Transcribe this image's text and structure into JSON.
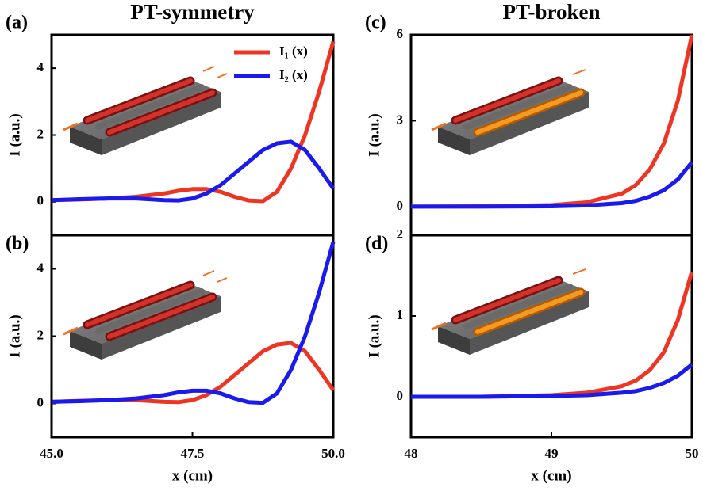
{
  "chart_data": [
    {
      "type": "line",
      "panel_label": "(a)",
      "title": "PT-symmetry",
      "ylabel": "I (a.u.)",
      "x": [
        45,
        45.5,
        46,
        46.5,
        47,
        47.25,
        47.5,
        47.75,
        48,
        48.25,
        48.5,
        48.75,
        49,
        49.25,
        49.5,
        49.75,
        50
      ],
      "series": [
        {
          "name": "I₁ (x)",
          "color": "#ee3524",
          "values": [
            0.05,
            0.07,
            0.1,
            0.15,
            0.25,
            0.33,
            0.38,
            0.38,
            0.3,
            0.15,
            0.04,
            0.02,
            0.3,
            1.0,
            2.0,
            3.3,
            4.8
          ]
        },
        {
          "name": "I₂ (x)",
          "color": "#1a1aee",
          "values": [
            0.05,
            0.08,
            0.1,
            0.1,
            0.05,
            0.04,
            0.1,
            0.25,
            0.5,
            0.85,
            1.2,
            1.55,
            1.75,
            1.8,
            1.55,
            1.0,
            0.4
          ]
        }
      ],
      "xlim": [
        45,
        50
      ],
      "ylim": [
        -1,
        5
      ],
      "yticks": [
        0,
        2,
        4
      ],
      "legend": "upper right"
    },
    {
      "type": "line",
      "panel_label": "(b)",
      "ylabel": "I (a.u.)",
      "xlabel": "x (cm)",
      "x": [
        45,
        45.5,
        46,
        46.5,
        47,
        47.25,
        47.5,
        47.75,
        48,
        48.25,
        48.5,
        48.75,
        49,
        49.25,
        49.5,
        49.75,
        50
      ],
      "series": [
        {
          "color": "#ee3524",
          "values": [
            0.05,
            0.08,
            0.1,
            0.1,
            0.05,
            0.04,
            0.1,
            0.25,
            0.5,
            0.85,
            1.2,
            1.55,
            1.75,
            1.8,
            1.55,
            1.0,
            0.4
          ]
        },
        {
          "color": "#1a1aee",
          "values": [
            0.05,
            0.07,
            0.1,
            0.15,
            0.25,
            0.33,
            0.38,
            0.38,
            0.3,
            0.15,
            0.04,
            0.02,
            0.3,
            1.0,
            2.0,
            3.3,
            4.8
          ]
        }
      ],
      "xlim": [
        45,
        50
      ],
      "ylim": [
        -1,
        5
      ],
      "yticks": [
        0,
        2,
        4
      ],
      "xticks": [
        {
          "value": 45,
          "label": "45.0"
        },
        47.5,
        {
          "value": 50,
          "label": "50.0"
        }
      ]
    },
    {
      "type": "line",
      "panel_label": "(c)",
      "title": "PT-broken",
      "ylabel": "I (a.u.)",
      "x": [
        48,
        48.5,
        49,
        49.25,
        49.5,
        49.6,
        49.7,
        49.8,
        49.9,
        50
      ],
      "series": [
        {
          "color": "#ee3524",
          "values": [
            0,
            0.01,
            0.05,
            0.15,
            0.45,
            0.75,
            1.3,
            2.2,
            3.7,
            6
          ]
        },
        {
          "color": "#1a1aee",
          "values": [
            0,
            0,
            0.01,
            0.04,
            0.12,
            0.2,
            0.35,
            0.57,
            0.95,
            1.55
          ]
        }
      ],
      "xlim": [
        48,
        50
      ],
      "ylim": [
        -1,
        6
      ],
      "yticks": [
        0,
        3,
        6
      ]
    },
    {
      "type": "line",
      "panel_label": "(d)",
      "ylabel": "I (a.u.)",
      "xlabel": "x (cm)",
      "x": [
        48,
        48.5,
        49,
        49.25,
        49.5,
        49.6,
        49.7,
        49.8,
        49.9,
        50
      ],
      "series": [
        {
          "color": "#ee3524",
          "values": [
            0,
            0,
            0.02,
            0.05,
            0.13,
            0.2,
            0.33,
            0.55,
            0.95,
            1.55
          ]
        },
        {
          "color": "#1a1aee",
          "values": [
            0,
            0,
            0.01,
            0.02,
            0.05,
            0.07,
            0.11,
            0.17,
            0.26,
            0.4
          ]
        }
      ],
      "xlim": [
        48,
        50
      ],
      "ylim": [
        -0.5,
        2
      ],
      "yticks": [
        0,
        1,
        2
      ],
      "xticks": [
        48,
        49,
        50
      ]
    }
  ]
}
